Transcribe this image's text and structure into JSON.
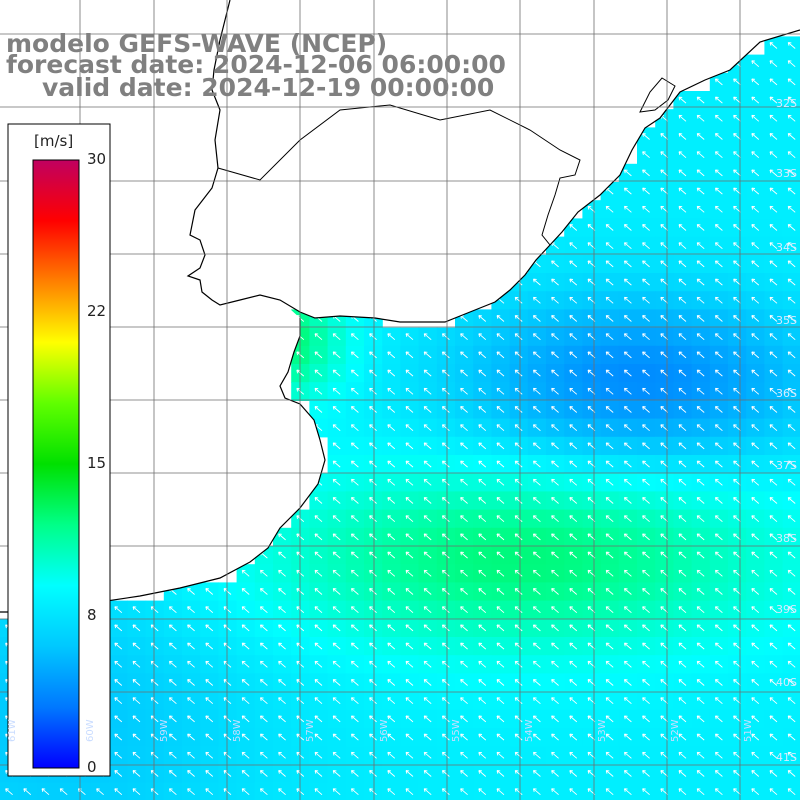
{
  "title": {
    "model": "modelo GEFS-WAVE (NCEP)",
    "forecast": "forecast date: 2024-12-06 06:00:00",
    "valid": "valid date: 2024-12-19 00:00:00"
  },
  "colorbar": {
    "unit": "[m/s]",
    "ticks": [
      "30",
      "22",
      "15",
      "8",
      "0"
    ],
    "tick_values": [
      30,
      22,
      15,
      8,
      0
    ],
    "range": [
      0,
      30
    ],
    "colors": [
      "#0000ff",
      "#0078ff",
      "#00c8ff",
      "#00ffff",
      "#00ff88",
      "#00e000",
      "#60ff00",
      "#ffff00",
      "#ff8000",
      "#ff0000",
      "#c00060"
    ]
  },
  "map_labels": {
    "latitudes": [
      "32S",
      "33S",
      "34S",
      "35S",
      "36S",
      "37S",
      "38S",
      "39S",
      "40S",
      "41S"
    ],
    "longitudes": [
      "61W",
      "60W",
      "59W",
      "58W",
      "57W",
      "56W",
      "55W",
      "54W",
      "53W",
      "52W",
      "51W"
    ]
  },
  "style": {
    "land_color": "#ffffff",
    "coast_color": "#000000",
    "grid_color": "#6e6e6e",
    "arrow_color": "#ffffff"
  },
  "icons": [
    "wind-arrow-icon"
  ]
}
